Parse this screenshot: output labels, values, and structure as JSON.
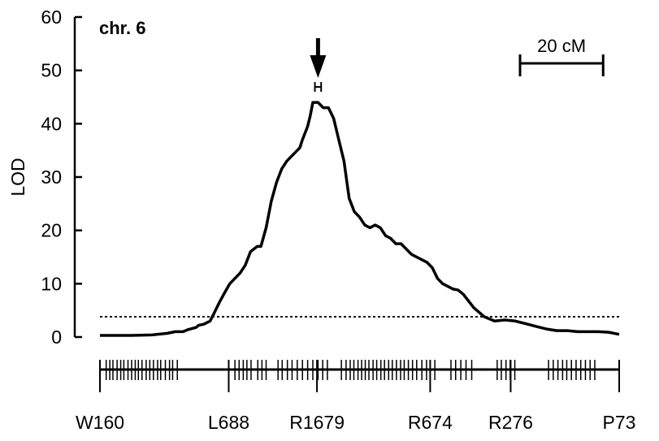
{
  "chart_data": {
    "type": "line",
    "title": "chr. 6",
    "ylabel": "LOD",
    "xlabel": "",
    "ylim": [
      0,
      60
    ],
    "xlim": [
      0,
      100
    ],
    "yticks": [
      "0",
      "10",
      "20",
      "30",
      "40",
      "50",
      "60"
    ],
    "yticks_values": [
      0,
      10,
      20,
      30,
      40,
      50,
      60
    ],
    "grid": false,
    "series": [
      {
        "x": [
          0,
          3,
          6,
          10,
          13,
          14.5,
          16,
          17,
          18.5,
          19,
          20,
          21.2,
          22,
          23,
          24,
          25,
          26,
          27,
          28,
          29,
          30.3,
          31,
          32,
          33,
          34,
          35,
          36,
          37,
          38,
          38.5,
          39,
          40,
          40.5,
          41,
          42,
          42.5,
          43,
          44,
          45,
          46,
          47,
          48,
          49,
          50,
          51,
          52,
          53,
          54,
          55,
          56,
          57,
          58,
          59,
          60,
          61,
          62,
          63,
          64,
          65,
          66,
          67,
          68,
          69,
          70,
          72,
          74,
          76,
          78,
          80,
          82,
          84,
          86,
          88,
          90,
          92,
          94,
          96,
          98,
          100
        ],
        "y": [
          0.3,
          0.3,
          0.3,
          0.4,
          0.7,
          1.0,
          1.0,
          1.4,
          1.8,
          2.2,
          2.4,
          3.0,
          4.5,
          6.5,
          8.3,
          10.0,
          11.0,
          12.0,
          13.5,
          16.0,
          17.0,
          17.0,
          20.5,
          25.5,
          29.0,
          31.5,
          33.0,
          34.0,
          35.0,
          35.5,
          37.0,
          39.5,
          41.5,
          44.0,
          44.0,
          43.5,
          43.0,
          43.0,
          41.0,
          37.0,
          33.0,
          26.0,
          23.5,
          22.5,
          21.0,
          20.5,
          21.0,
          20.5,
          19.0,
          18.5,
          17.5,
          17.5,
          16.5,
          15.5,
          15.0,
          14.5,
          14.0,
          13.0,
          11.0,
          10.0,
          9.5,
          9.0,
          8.8,
          8.0,
          5.5,
          3.8,
          3.0,
          3.2,
          3.0,
          2.5,
          2.0,
          1.5,
          1.2,
          1.2,
          1.0,
          1.0,
          1.0,
          0.9,
          0.5
        ]
      }
    ],
    "threshold": 3.8,
    "peak_arrow_x": 42,
    "peak_interval": [
      41.4,
      42.6
    ],
    "scale_bar": {
      "label": "20 cM",
      "length": 16
    },
    "x_markers": [
      {
        "label": "W160",
        "x": 0
      },
      {
        "label": "L688",
        "x": 24.8
      },
      {
        "label": "R1679",
        "x": 41.8
      },
      {
        "label": "R674",
        "x": 63.6
      },
      {
        "label": "R276",
        "x": 79.1
      },
      {
        "label": "P73",
        "x": 100
      }
    ],
    "marker_ticks": [
      0,
      1.2,
      1.9,
      2.5,
      3.3,
      4.0,
      4.6,
      5.4,
      6.1,
      6.8,
      7.4,
      8.1,
      8.9,
      9.6,
      10.3,
      11.1,
      11.7,
      12.6,
      13.4,
      14.0,
      14.9,
      26.0,
      26.8,
      27.6,
      28.3,
      29.1,
      30.4,
      31.2,
      32.0,
      34.3,
      35.1,
      36.1,
      37.0,
      38.0,
      39.0,
      40.0,
      41.0,
      42.0,
      42.9,
      43.8,
      46.5,
      47.4,
      48.2,
      48.9,
      49.7,
      50.4,
      51.1,
      51.8,
      52.6,
      53.3,
      54.1,
      54.8,
      55.6,
      56.3,
      57.1,
      57.9,
      58.6,
      59.4,
      60.2,
      61.0,
      62.0,
      62.9,
      64.5,
      67.6,
      68.5,
      69.5,
      70.5,
      71.6,
      76.5,
      77.3,
      78.2,
      79.0,
      79.9,
      86.4,
      87.3,
      88.2,
      89.1,
      89.9,
      90.8,
      91.7,
      92.6,
      93.5,
      94.4,
      95.3,
      100
    ]
  }
}
